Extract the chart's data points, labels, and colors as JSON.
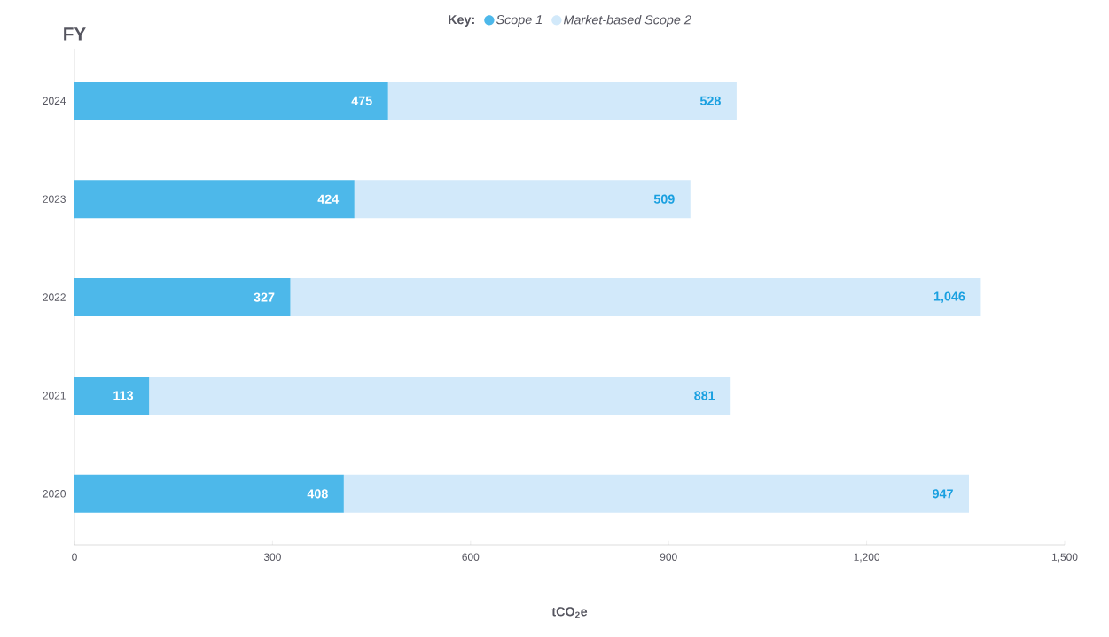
{
  "chart_data": {
    "type": "bar",
    "orientation": "horizontal",
    "stacked": true,
    "ylabel": "FY",
    "xlabel": "tCO$_{2}$e",
    "legend_title": "Key:",
    "legend": "top",
    "categories": [
      "2024",
      "2023",
      "2022",
      "2021",
      "2020"
    ],
    "series": [
      {
        "name": "Scope 1",
        "color": "#4db8ea",
        "values": [
          475,
          424,
          327,
          113,
          408
        ],
        "value_labels": [
          "475",
          "424",
          "327",
          "113",
          "408"
        ]
      },
      {
        "name": "Market-based Scope 2",
        "color": "#d2e9fa",
        "values": [
          528,
          509,
          1046,
          881,
          947
        ],
        "value_labels": [
          "528",
          "509",
          "1,046",
          "881",
          "947"
        ]
      }
    ],
    "xlim": [
      0,
      1500
    ],
    "xticks": [
      0,
      300,
      600,
      900,
      {
        "value": 1200,
        "label": "1,200"
      },
      {
        "value": 1500,
        "label": "1,500"
      }
    ]
  }
}
